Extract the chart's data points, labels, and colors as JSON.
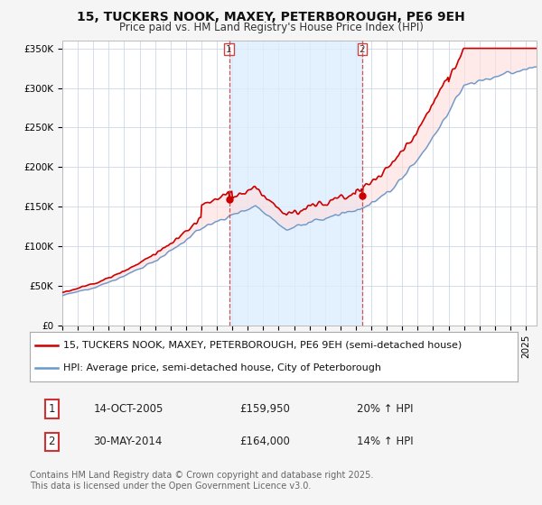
{
  "title": "15, TUCKERS NOOK, MAXEY, PETERBOROUGH, PE6 9EH",
  "subtitle": "Price paid vs. HM Land Registry's House Price Index (HPI)",
  "ylim": [
    0,
    360000
  ],
  "yticks": [
    0,
    50000,
    100000,
    150000,
    200000,
    250000,
    300000,
    350000
  ],
  "ytick_labels": [
    "£0",
    "£50K",
    "£100K",
    "£150K",
    "£200K",
    "£250K",
    "£300K",
    "£350K"
  ],
  "xlim_start": 1995.0,
  "xlim_end": 2025.7,
  "line1_color": "#cc0000",
  "line2_color": "#6699cc",
  "shade_color": "#ddeeff",
  "vline_color": "#cc4444",
  "sale1_t": 2005.79,
  "sale2_t": 2014.41,
  "sale1_price": 159950,
  "sale2_price": 164000,
  "sale1_date": "14-OCT-2005",
  "sale1_price_str": "£159,950",
  "sale1_hpi": "20% ↑ HPI",
  "sale2_date": "30-MAY-2014",
  "sale2_price_str": "£164,000",
  "sale2_hpi": "14% ↑ HPI",
  "legend1_text": "15, TUCKERS NOOK, MAXEY, PETERBOROUGH, PE6 9EH (semi-detached house)",
  "legend2_text": "HPI: Average price, semi-detached house, City of Peterborough",
  "footer": "Contains HM Land Registry data © Crown copyright and database right 2025.\nThis data is licensed under the Open Government Licence v3.0.",
  "fig_bg": "#f5f5f5",
  "plot_bg": "#ffffff",
  "grid_color": "#d0d8e8",
  "title_fontsize": 10,
  "subtitle_fontsize": 8.5,
  "tick_fontsize": 7.5,
  "legend_fontsize": 8,
  "footer_fontsize": 7
}
